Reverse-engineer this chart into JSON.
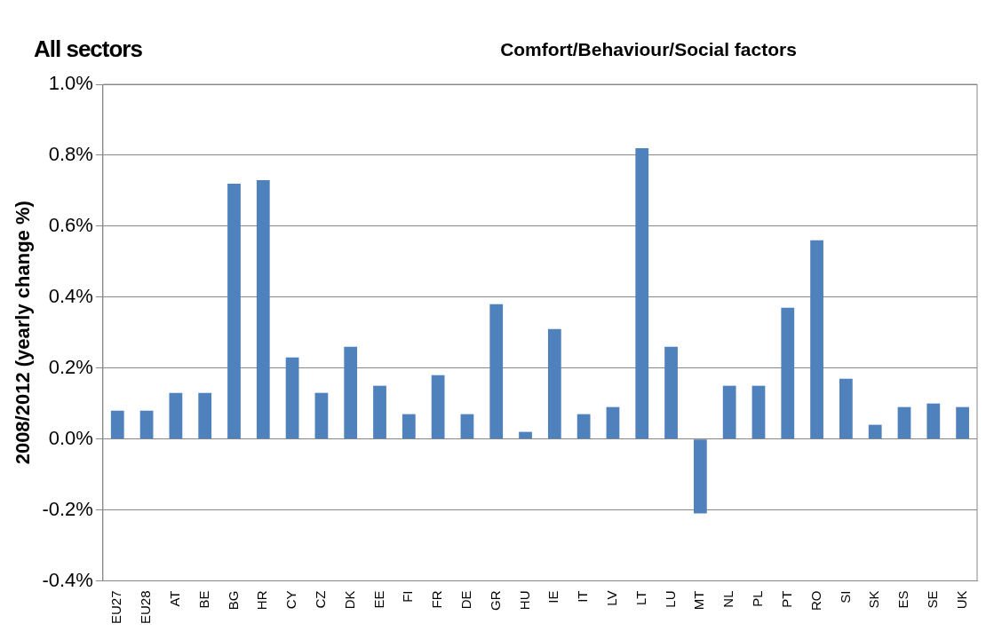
{
  "chart_data": {
    "type": "bar",
    "title": "All sectors",
    "subtitle": "Comfort/Behaviour/Social  factors",
    "ylabel": "2008/2012 (yearly change %)",
    "categories": [
      "EU27",
      "EU28",
      "AT",
      "BE",
      "BG",
      "HR",
      "CY",
      "CZ",
      "DK",
      "EE",
      "FI",
      "FR",
      "DE",
      "GR",
      "HU",
      "IE",
      "IT",
      "LV",
      "LT",
      "LU",
      "MT",
      "NL",
      "PL",
      "PT",
      "RO",
      "SI",
      "SK",
      "ES",
      "SE",
      "UK"
    ],
    "values": [
      0.08,
      0.08,
      0.13,
      0.13,
      0.72,
      0.73,
      0.23,
      0.13,
      0.26,
      0.15,
      0.07,
      0.18,
      0.07,
      0.38,
      0.02,
      0.31,
      0.07,
      0.09,
      0.82,
      0.26,
      -0.21,
      0.15,
      0.15,
      0.37,
      0.56,
      0.17,
      0.04,
      0.09,
      0.1,
      0.09
    ],
    "color": "#4f81bd",
    "ylim": [
      -0.4,
      1.0
    ],
    "yticks": [
      {
        "value": -0.4,
        "label": "-0.4%"
      },
      {
        "value": -0.2,
        "label": "-0.2%"
      },
      {
        "value": 0,
        "label": "0.0%"
      },
      {
        "value": 0.2,
        "label": "0.2%"
      },
      {
        "value": 0.4,
        "label": "0.4%"
      },
      {
        "value": 0.6,
        "label": "0.6%"
      },
      {
        "value": 0.8,
        "label": "0.8%"
      },
      {
        "value": 1.0,
        "label": "1.0%"
      }
    ],
    "grid": "y",
    "legend": false
  }
}
